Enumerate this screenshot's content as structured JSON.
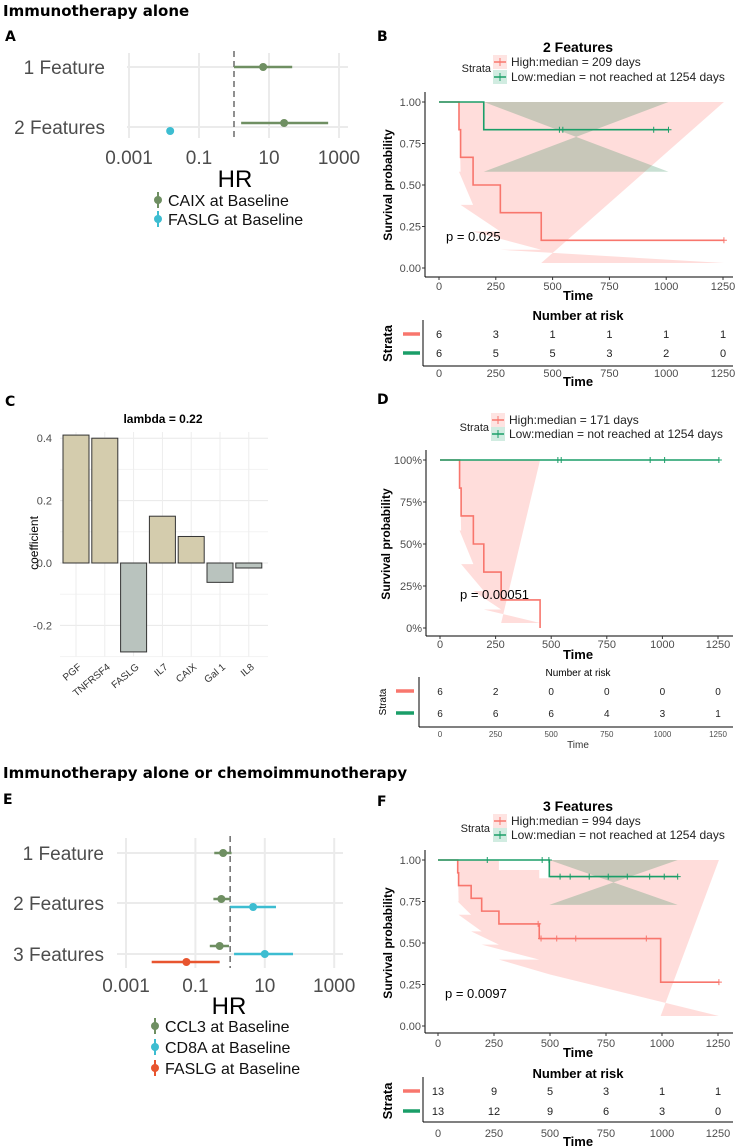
{
  "sections": [
    {
      "title": "Immunotherapy alone"
    },
    {
      "title": "Immunotherapy alone or chemoimmunotherapy"
    }
  ],
  "chart_data": [
    {
      "panel": "A",
      "type": "scatter",
      "subtype": "forest",
      "xlabel": "HR",
      "x_scale": "log",
      "x_ticks": [
        0.001,
        0.1,
        10,
        1000
      ],
      "x_tick_labels": [
        "0.001",
        "0.1",
        "10",
        "1000"
      ],
      "rows": [
        "1 Feature",
        "2 Features"
      ],
      "reference_line": 1,
      "series": [
        {
          "name": "CAIX at Baseline",
          "color": "#6f8f62",
          "points": [
            {
              "row": 0,
              "hr": 6.8,
              "lower": 1.0,
              "upper": 46
            },
            {
              "row": 1,
              "hr": 27,
              "lower": 1.6,
              "upper": 490
            }
          ]
        },
        {
          "name": "FASLG at Baseline",
          "color": "#3dbdd1",
          "points": [
            {
              "row": 1,
              "hr": 0.015,
              "lower": null,
              "upper": null
            }
          ]
        }
      ]
    },
    {
      "panel": "B",
      "type": "line",
      "subtype": "kaplan-meier",
      "title": "2 Features",
      "xlabel": "Time",
      "ylabel": "Survival probability",
      "xlim": [
        0,
        1254
      ],
      "x_ticks": [
        0,
        250,
        500,
        750,
        1000,
        1250
      ],
      "y_ticks": [
        0,
        0.25,
        0.5,
        0.75,
        1
      ],
      "y_tick_labels": [
        "0.00",
        "0.25",
        "0.50",
        "0.75",
        "1.00"
      ],
      "legend_title": "Strata",
      "p_value": "p = 0.025",
      "series": [
        {
          "name": "High:median = 209 days",
          "color": "#f8766d",
          "steps": [
            [
              0,
              1
            ],
            [
              88,
              0.833
            ],
            [
              95,
              0.667
            ],
            [
              150,
              0.5
            ],
            [
              270,
              0.333
            ],
            [
              450,
              0.167
            ]
          ],
          "end": 1254,
          "censor": [
            [
              1254,
              0.167
            ]
          ],
          "ci": [
            [
              88,
              0.58,
              1
            ],
            [
              95,
              0.38,
              1
            ],
            [
              150,
              0.22,
              1
            ],
            [
              270,
              0.11,
              1
            ],
            [
              450,
              0.03,
              1
            ]
          ],
          "ci_end": 1254
        },
        {
          "name": "Low:median = not reached at 1254 days",
          "color": "#1a9e68",
          "steps": [
            [
              0,
              1
            ],
            [
              197,
              0.833
            ]
          ],
          "end": 1010,
          "censor": [
            [
              530,
              0.833
            ],
            [
              545,
              0.833
            ],
            [
              945,
              0.833
            ],
            [
              1010,
              0.833
            ]
          ],
          "ci": [
            [
              197,
              0.58,
              1
            ]
          ],
          "ci_end": 1010
        }
      ],
      "risk_table": {
        "title": "Number at risk",
        "ylabel": "Strata",
        "xlabel": "Time",
        "rows": [
          [
            6,
            3,
            1,
            1,
            1,
            1
          ],
          [
            6,
            5,
            5,
            3,
            2,
            0
          ]
        ]
      }
    },
    {
      "panel": "C",
      "type": "bar",
      "title": "lambda = 0.22",
      "xlabel": "",
      "ylabel": "coefficient",
      "ylim": [
        -0.3,
        0.42
      ],
      "y_ticks": [
        -0.2,
        0,
        0.2,
        0.4
      ],
      "y_tick_labels": [
        "-0.2",
        "0.0",
        "0.2",
        "0.4"
      ],
      "categories": [
        "PGF",
        "TNFRSF4",
        "FASLG",
        "IL7",
        "CAIX",
        "Gal 1",
        "IL8"
      ],
      "values": [
        0.41,
        0.4,
        -0.285,
        0.15,
        0.085,
        -0.062,
        -0.016
      ],
      "colors": {
        "positive": "#d4ccad",
        "negative": "#b9c3be"
      }
    },
    {
      "panel": "D",
      "type": "line",
      "subtype": "kaplan-meier",
      "title": "",
      "xlabel": "Time",
      "ylabel": "Survival probability",
      "xlim": [
        0,
        1254
      ],
      "x_ticks": [
        0,
        250,
        500,
        750,
        1000,
        1250
      ],
      "y_ticks": [
        0,
        0.25,
        0.5,
        0.75,
        1
      ],
      "y_tick_labels": [
        "0%",
        "25%",
        "50%",
        "75%",
        "100%"
      ],
      "legend_title": "Strata",
      "p_value": "p = 0.00051",
      "series": [
        {
          "name": "High:median = 171 days",
          "color": "#f8766d",
          "steps": [
            [
              0,
              1
            ],
            [
              88,
              0.833
            ],
            [
              95,
              0.667
            ],
            [
              150,
              0.5
            ],
            [
              197,
              0.333
            ],
            [
              275,
              0.167
            ],
            [
              450,
              0
            ]
          ],
          "end": 450,
          "censor": [],
          "ci": [
            [
              88,
              0.58,
              1
            ],
            [
              95,
              0.38,
              1
            ],
            [
              150,
              0.22,
              1
            ],
            [
              197,
              0.11,
              1
            ],
            [
              275,
              0.03,
              1
            ]
          ],
          "ci_end": 450
        },
        {
          "name": "Low:median = not reached at 1254 days",
          "color": "#1a9e68",
          "steps": [
            [
              0,
              1
            ]
          ],
          "end": 1254,
          "censor": [
            [
              530,
              1
            ],
            [
              545,
              1
            ],
            [
              945,
              1
            ],
            [
              1010,
              1
            ],
            [
              1254,
              1
            ]
          ],
          "ci": [],
          "ci_end": 0
        }
      ],
      "risk_table": {
        "title": "Number at risk",
        "ylabel": "Strata",
        "xlabel": "Time",
        "rows": [
          [
            6,
            2,
            0,
            0,
            0,
            0
          ],
          [
            6,
            6,
            6,
            4,
            3,
            1
          ]
        ]
      }
    },
    {
      "panel": "E",
      "type": "scatter",
      "subtype": "forest",
      "xlabel": "HR",
      "x_scale": "log",
      "x_ticks": [
        0.001,
        0.1,
        10,
        1000
      ],
      "x_tick_labels": [
        "0.001",
        "0.1",
        "10",
        "1000"
      ],
      "rows": [
        "1 Feature",
        "2 Features",
        "3 Features"
      ],
      "reference_line": 1,
      "series": [
        {
          "name": "CCL3 at Baseline",
          "color": "#6f8f62",
          "points": [
            {
              "row": 0,
              "hr": 0.63,
              "lower": 0.35,
              "upper": 1.1
            },
            {
              "row": 1,
              "hr": 0.56,
              "lower": 0.33,
              "upper": 1.0
            },
            {
              "row": 2,
              "hr": 0.5,
              "lower": 0.26,
              "upper": 0.93
            }
          ]
        },
        {
          "name": "CD8A at Baseline",
          "color": "#3dbdd1",
          "points": [
            {
              "row": 1,
              "hr": 4.6,
              "lower": 1.0,
              "upper": 21
            },
            {
              "row": 2,
              "hr": 10,
              "lower": 1.3,
              "upper": 65
            }
          ]
        },
        {
          "name": "FASLG at Baseline",
          "color": "#e8552f",
          "points": [
            {
              "row": 2,
              "hr": 0.055,
              "lower": 0.0055,
              "upper": 0.5
            }
          ]
        }
      ]
    },
    {
      "panel": "F",
      "type": "line",
      "subtype": "kaplan-meier",
      "title": "3 Features",
      "xlabel": "Time",
      "ylabel": "Survival probability",
      "xlim": [
        0,
        1254
      ],
      "x_ticks": [
        0,
        250,
        500,
        750,
        1000,
        1250
      ],
      "y_ticks": [
        0,
        0.25,
        0.5,
        0.75,
        1
      ],
      "y_tick_labels": [
        "0.00",
        "0.25",
        "0.50",
        "0.75",
        "1.00"
      ],
      "legend_title": "Strata",
      "p_value": "p = 0.0097",
      "series": [
        {
          "name": "High:median = 994 days",
          "color": "#f8766d",
          "steps": [
            [
              0,
              1
            ],
            [
              88,
              0.923
            ],
            [
              92,
              0.846
            ],
            [
              148,
              0.769
            ],
            [
              195,
              0.692
            ],
            [
              272,
              0.615
            ],
            [
              452,
              0.527
            ],
            [
              994,
              0.264
            ]
          ],
          "end": 1254,
          "censor": [
            [
              447,
              0.615
            ],
            [
              460,
              0.527
            ],
            [
              530,
              0.527
            ],
            [
              615,
              0.527
            ],
            [
              930,
              0.527
            ],
            [
              1254,
              0.264
            ]
          ],
          "ci": [
            [
              88,
              0.75,
              1
            ],
            [
              92,
              0.67,
              1
            ],
            [
              148,
              0.57,
              1
            ],
            [
              195,
              0.49,
              1
            ],
            [
              272,
              0.4,
              0.94
            ],
            [
              452,
              0.31,
              0.89
            ],
            [
              500,
              0.31,
              1
            ],
            [
              994,
              0.06,
              1
            ]
          ],
          "ci_end": 1254
        },
        {
          "name": "Low:median = not reached at 1254 days",
          "color": "#1a9e68",
          "steps": [
            [
              0,
              1
            ],
            [
              497,
              0.9
            ]
          ],
          "end": 1070,
          "censor": [
            [
              220,
              1
            ],
            [
              465,
              1
            ],
            [
              495,
              1
            ],
            [
              545,
              0.9
            ],
            [
              590,
              0.9
            ],
            [
              675,
              0.9
            ],
            [
              760,
              0.9
            ],
            [
              845,
              0.9
            ],
            [
              945,
              0.9
            ],
            [
              1010,
              0.9
            ],
            [
              1070,
              0.9
            ]
          ],
          "ci": [
            [
              497,
              0.73,
              1
            ]
          ],
          "ci_end": 1070
        }
      ],
      "risk_table": {
        "title": "Number at risk",
        "ylabel": "Strata",
        "xlabel": "Time",
        "rows": [
          [
            13,
            9,
            5,
            3,
            1,
            1
          ],
          [
            13,
            12,
            9,
            6,
            3,
            0
          ]
        ]
      }
    }
  ]
}
